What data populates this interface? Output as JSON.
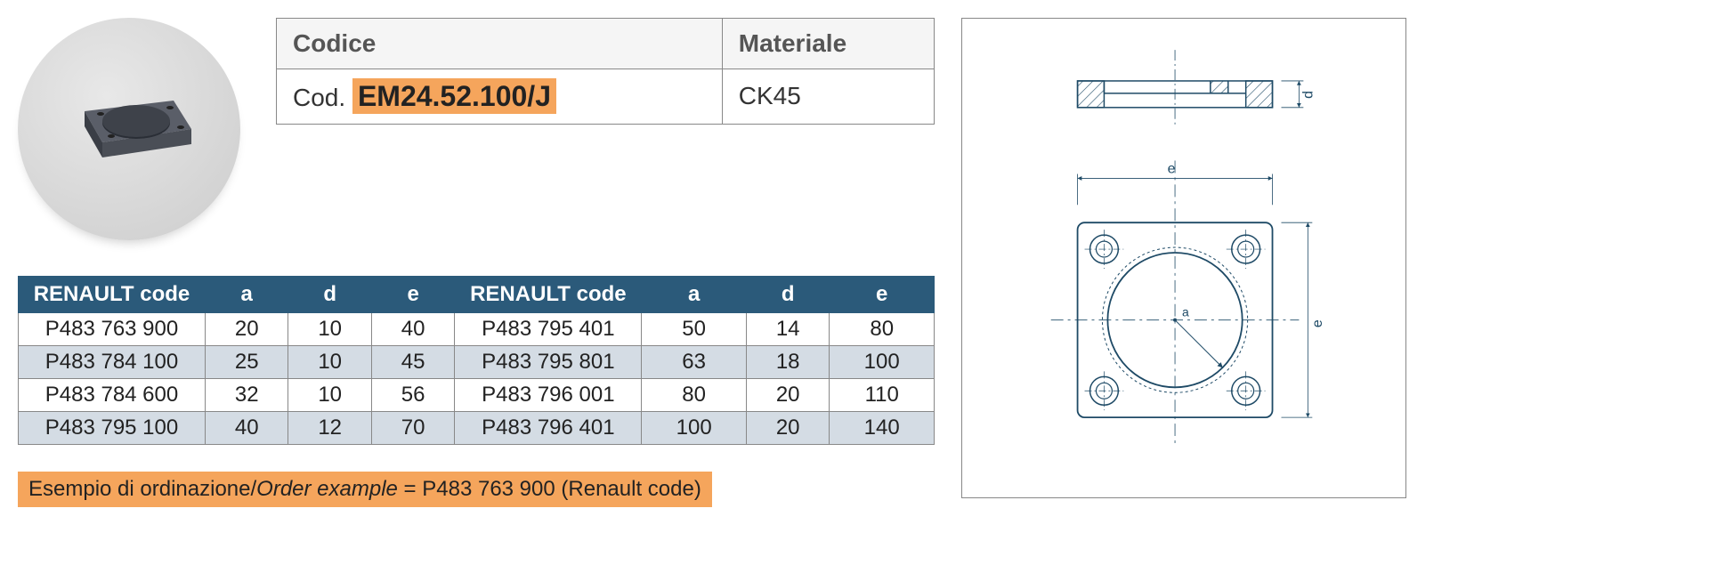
{
  "code_table": {
    "header_code": "Codice",
    "header_material": "Materiale",
    "code_prefix": "Cod.",
    "code_value": "EM24.52.100/J",
    "material_value": "CK45",
    "highlight_bg": "#f5a55c",
    "header_bg": "#f5f5f5",
    "border_color": "#888888",
    "header_fontsize": 28,
    "code_fontsize": 32
  },
  "data_table": {
    "header_bg": "#2b5a7a",
    "header_color": "#ffffff",
    "alt_row_bg": "#d4dce4",
    "border_color": "#888888",
    "fontsize": 24,
    "columns": [
      "RENAULT code",
      "a",
      "d",
      "e",
      "RENAULT code",
      "a",
      "d",
      "e"
    ],
    "rows": [
      [
        "P483 763 900",
        "20",
        "10",
        "40",
        "P483 795 401",
        "50",
        "14",
        "80"
      ],
      [
        "P483 784 100",
        "25",
        "10",
        "45",
        "P483 795 801",
        "63",
        "18",
        "100"
      ],
      [
        "P483 784 600",
        "32",
        "10",
        "56",
        "P483 796 001",
        "80",
        "20",
        "110"
      ],
      [
        "P483 795 100",
        "40",
        "12",
        "70",
        "P483 796 401",
        "100",
        "20",
        "140"
      ]
    ]
  },
  "order_example": {
    "label_it": "Esempio di ordinazione",
    "label_en": "Order example",
    "value": "P483 763 900 (Renault code)",
    "bg_color": "#f5a55c",
    "fontsize": 24
  },
  "drawing": {
    "dim_d": "d",
    "dim_e_top": "e",
    "dim_e_right": "e",
    "dim_a": "a",
    "stroke_color": "#1e4a66",
    "hatch_color": "#1e4a66",
    "centerline_color": "#1e4a66",
    "dim_color": "#1e4a66",
    "line_width": 1.5
  },
  "product": {
    "bg_gradient_light": "#e8e8e8",
    "bg_gradient_dark": "#cccccc",
    "plate_color": "#4a4e56"
  }
}
